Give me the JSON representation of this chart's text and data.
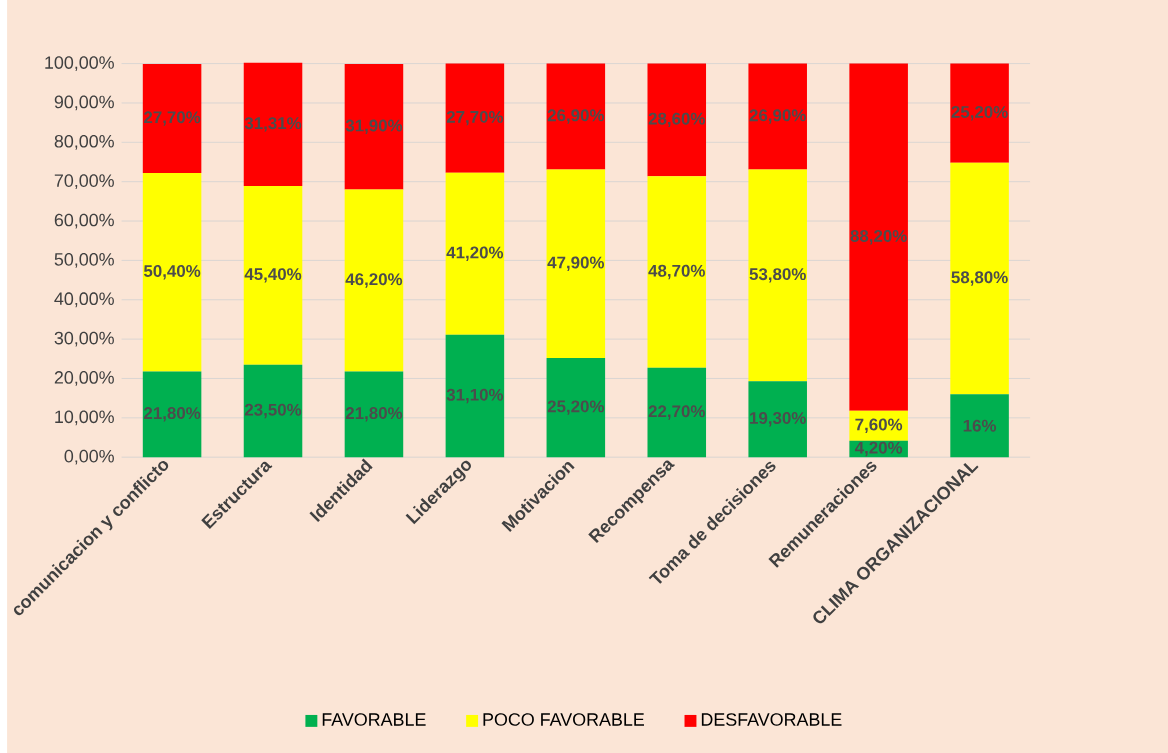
{
  "chart_data": {
    "type": "bar",
    "stacked": true,
    "categories": [
      "comunicacion y conflicto",
      "Estructura",
      "Identidad",
      "Liderazgo",
      "Motivacion",
      "Recompensa",
      "Toma de decisiones",
      "Remuneraciones",
      "CLIMA ORGANIZACIONAL"
    ],
    "series": [
      {
        "name": "FAVORABLE",
        "color": "#00b050",
        "values": [
          21.8,
          23.5,
          21.8,
          31.1,
          25.2,
          22.7,
          19.3,
          4.2,
          16
        ],
        "value_labels": [
          "21,80%",
          "23,50%",
          "21,80%",
          "31,10%",
          "25,20%",
          "22,70%",
          "19,30%",
          "4,20%",
          "16%"
        ]
      },
      {
        "name": "POCO FAVORABLE",
        "color": "#ffff00",
        "values": [
          50.4,
          45.4,
          46.2,
          41.2,
          47.9,
          48.7,
          53.8,
          7.6,
          58.8
        ],
        "value_labels": [
          "50,40%",
          "45,40%",
          "46,20%",
          "41,20%",
          "47,90%",
          "48,70%",
          "53,80%",
          "7,60%",
          "58,80%"
        ]
      },
      {
        "name": "DESFAVORABLE",
        "color": "#ff0000",
        "values": [
          27.7,
          31.31,
          31.9,
          27.7,
          26.9,
          28.6,
          26.9,
          88.2,
          25.2
        ],
        "value_labels": [
          "27,70%",
          "31,31%",
          "31,90%",
          "27,70%",
          "26,90%",
          "28,60%",
          "26,90%",
          "88,20%",
          "25,20%"
        ]
      }
    ],
    "ylim": [
      0,
      100
    ],
    "yticks": [
      {
        "value": 0,
        "label": "0,00%"
      },
      {
        "value": 10,
        "label": "10,00%"
      },
      {
        "value": 20,
        "label": "20,00%"
      },
      {
        "value": 30,
        "label": "30,00%"
      },
      {
        "value": 40,
        "label": "40,00%"
      },
      {
        "value": 50,
        "label": "50,00%"
      },
      {
        "value": 60,
        "label": "60,00%"
      },
      {
        "value": 70,
        "label": "70,00%"
      },
      {
        "value": 80,
        "label": "80,00%"
      },
      {
        "value": 90,
        "label": "90,00%"
      },
      {
        "value": 100,
        "label": "100,00%"
      }
    ],
    "grid": "y",
    "legend": "bottom"
  }
}
